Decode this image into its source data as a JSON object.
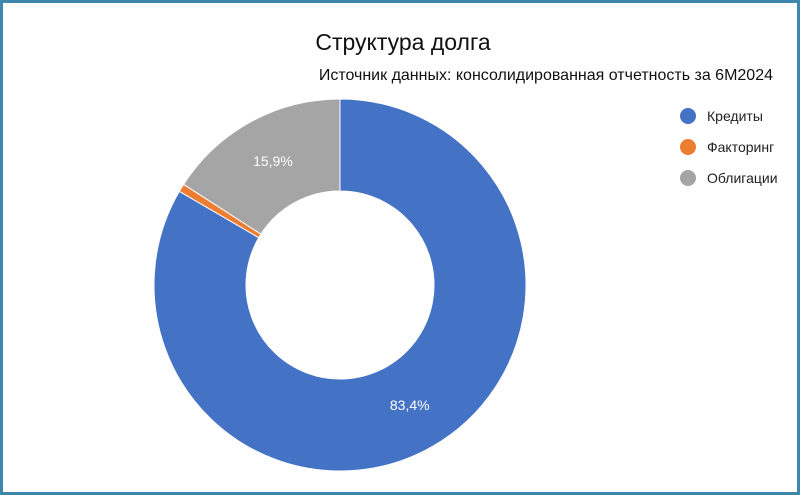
{
  "chart_data": {
    "type": "pie",
    "title": "Структура долга",
    "subtitle": "Источник данных: консолидированная отчетность за 6М2024",
    "legend_position": "right",
    "slices": [
      {
        "name": "Кредиты",
        "value": 83.4,
        "label": "83,4%",
        "color": "#4472c4"
      },
      {
        "name": "Факторинг",
        "value": 0.7,
        "label": "",
        "color": "#ed7d31"
      },
      {
        "name": "Облигации",
        "value": 15.9,
        "label": "15,9%",
        "color": "#a5a5a5"
      }
    ]
  }
}
